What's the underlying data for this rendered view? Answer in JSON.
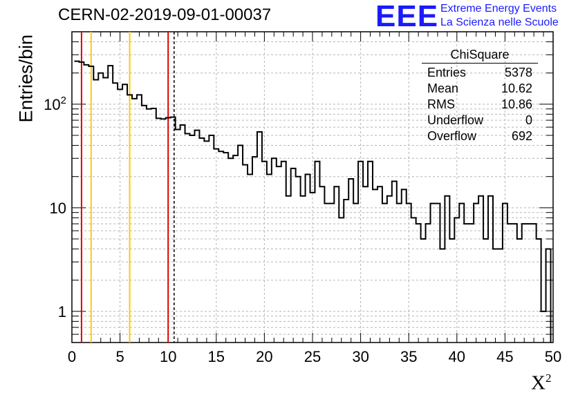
{
  "header": {
    "run_title": "CERN-02-2019-09-01-00037",
    "logo_mark": "EEE",
    "logo_line1": "Extreme Energy Events",
    "logo_line2": "La Scienza nelle Scuole"
  },
  "stats_box": {
    "title": "ChiSquare",
    "rows": [
      {
        "label": "Entries",
        "value": "5378"
      },
      {
        "label": "Mean",
        "value": "10.62"
      },
      {
        "label": "RMS",
        "value": "10.86"
      },
      {
        "label": "Underflow",
        "value": "0"
      },
      {
        "label": "Overflow",
        "value": "692"
      }
    ]
  },
  "colors": {
    "red_line": "#dd0000",
    "yellow_line": "#ffcc00",
    "logo": "#1a1aff",
    "grid": "#b4b4b4"
  },
  "chart_data": {
    "type": "step-histogram",
    "title": "CERN-02-2019-09-01-00037",
    "xlabel": "X²",
    "ylabel": "Entries/bin",
    "xlim": [
      0,
      50
    ],
    "ylim": [
      0.5,
      500
    ],
    "y_scale": "log",
    "grid": true,
    "x_ticks": [
      0,
      5,
      10,
      15,
      20,
      25,
      30,
      35,
      40,
      45,
      50
    ],
    "y_ticks": [
      1,
      10,
      100
    ],
    "y_tick_labels": [
      "1",
      "10",
      "10²"
    ],
    "bin_width": 0.5,
    "bins": [
      {
        "x": 0.5,
        "y": 260
      },
      {
        "x": 1.0,
        "y": 255
      },
      {
        "x": 1.5,
        "y": 240
      },
      {
        "x": 2.0,
        "y": 232
      },
      {
        "x": 2.5,
        "y": 172
      },
      {
        "x": 3.0,
        "y": 200
      },
      {
        "x": 3.5,
        "y": 180
      },
      {
        "x": 4.0,
        "y": 235
      },
      {
        "x": 4.5,
        "y": 160
      },
      {
        "x": 5.0,
        "y": 139
      },
      {
        "x": 5.5,
        "y": 155
      },
      {
        "x": 6.0,
        "y": 123
      },
      {
        "x": 6.5,
        "y": 113
      },
      {
        "x": 7.0,
        "y": 123
      },
      {
        "x": 7.5,
        "y": 97
      },
      {
        "x": 8.0,
        "y": 90
      },
      {
        "x": 8.5,
        "y": 91
      },
      {
        "x": 9.0,
        "y": 73
      },
      {
        "x": 9.5,
        "y": 72
      },
      {
        "x": 10.0,
        "y": 74
      },
      {
        "x": 10.5,
        "y": 75
      },
      {
        "x": 11.0,
        "y": 57
      },
      {
        "x": 11.5,
        "y": 63
      },
      {
        "x": 12.0,
        "y": 52
      },
      {
        "x": 12.5,
        "y": 50
      },
      {
        "x": 13.0,
        "y": 56
      },
      {
        "x": 13.5,
        "y": 47
      },
      {
        "x": 14.0,
        "y": 44
      },
      {
        "x": 14.5,
        "y": 50
      },
      {
        "x": 15.0,
        "y": 37
      },
      {
        "x": 15.5,
        "y": 35
      },
      {
        "x": 16.0,
        "y": 34
      },
      {
        "x": 16.5,
        "y": 30
      },
      {
        "x": 17.0,
        "y": 32
      },
      {
        "x": 17.5,
        "y": 40
      },
      {
        "x": 18.0,
        "y": 26
      },
      {
        "x": 18.5,
        "y": 21
      },
      {
        "x": 19.0,
        "y": 31
      },
      {
        "x": 19.5,
        "y": 54
      },
      {
        "x": 20.0,
        "y": 28
      },
      {
        "x": 20.5,
        "y": 21
      },
      {
        "x": 21.0,
        "y": 30
      },
      {
        "x": 21.5,
        "y": 25
      },
      {
        "x": 22.0,
        "y": 28
      },
      {
        "x": 22.5,
        "y": 13
      },
      {
        "x": 23.0,
        "y": 24
      },
      {
        "x": 23.5,
        "y": 20
      },
      {
        "x": 24.0,
        "y": 13
      },
      {
        "x": 24.5,
        "y": 21
      },
      {
        "x": 25.0,
        "y": 14
      },
      {
        "x": 25.5,
        "y": 28
      },
      {
        "x": 26.0,
        "y": 16
      },
      {
        "x": 26.5,
        "y": 11
      },
      {
        "x": 27.0,
        "y": 11
      },
      {
        "x": 27.5,
        "y": 16
      },
      {
        "x": 28.0,
        "y": 8
      },
      {
        "x": 28.5,
        "y": 12
      },
      {
        "x": 29.0,
        "y": 19
      },
      {
        "x": 29.5,
        "y": 11
      },
      {
        "x": 30.0,
        "y": 28
      },
      {
        "x": 30.5,
        "y": 16
      },
      {
        "x": 31.0,
        "y": 28
      },
      {
        "x": 31.5,
        "y": 15
      },
      {
        "x": 32.0,
        "y": 16
      },
      {
        "x": 32.5,
        "y": 11
      },
      {
        "x": 33.0,
        "y": 13
      },
      {
        "x": 33.5,
        "y": 18
      },
      {
        "x": 34.0,
        "y": 11
      },
      {
        "x": 34.5,
        "y": 15
      },
      {
        "x": 35.0,
        "y": 11
      },
      {
        "x": 35.5,
        "y": 8
      },
      {
        "x": 36.0,
        "y": 7
      },
      {
        "x": 36.5,
        "y": 5
      },
      {
        "x": 37.0,
        "y": 7
      },
      {
        "x": 37.5,
        "y": 11
      },
      {
        "x": 38.0,
        "y": 11
      },
      {
        "x": 38.5,
        "y": 4
      },
      {
        "x": 39.0,
        "y": 13
      },
      {
        "x": 39.5,
        "y": 5
      },
      {
        "x": 40.0,
        "y": 8
      },
      {
        "x": 40.5,
        "y": 11
      },
      {
        "x": 41.0,
        "y": 7
      },
      {
        "x": 41.5,
        "y": 7
      },
      {
        "x": 42.0,
        "y": 11
      },
      {
        "x": 42.5,
        "y": 13
      },
      {
        "x": 43.0,
        "y": 5
      },
      {
        "x": 43.5,
        "y": 13
      },
      {
        "x": 44.0,
        "y": 4
      },
      {
        "x": 44.5,
        "y": 4
      },
      {
        "x": 45.0,
        "y": 11
      },
      {
        "x": 45.5,
        "y": 7
      },
      {
        "x": 46.0,
        "y": 7
      },
      {
        "x": 46.5,
        "y": 5
      },
      {
        "x": 47.0,
        "y": 7
      },
      {
        "x": 47.5,
        "y": 7
      },
      {
        "x": 48.0,
        "y": 7
      },
      {
        "x": 48.5,
        "y": 5
      },
      {
        "x": 49.0,
        "y": 1
      },
      {
        "x": 49.5,
        "y": 4
      }
    ],
    "vertical_lines": [
      {
        "x": 1,
        "color": "#dd0000",
        "style": "solid"
      },
      {
        "x": 2,
        "color": "#ffcc00",
        "style": "solid"
      },
      {
        "x": 6,
        "color": "#ffcc00",
        "style": "solid"
      },
      {
        "x": 10,
        "color": "#dd0000",
        "style": "solid"
      },
      {
        "x": 10.62,
        "color": "#000000",
        "style": "dashed"
      }
    ]
  }
}
